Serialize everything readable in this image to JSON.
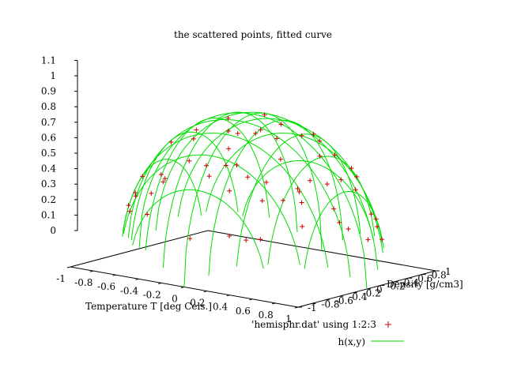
{
  "chart_data": {
    "type": "scatter",
    "title": "the scattered points, fitted curve",
    "xlabel": "Temperature T  [deg Cels.]",
    "ylabel": "Density [g/cm3]",
    "zlabel": "",
    "xlim": [
      -1,
      1
    ],
    "ylim": [
      -1,
      1
    ],
    "zlim": [
      0,
      1.1
    ],
    "x_ticks": [
      "-1",
      "-0.8",
      "-0.6",
      "-0.4",
      "-0.2",
      "0",
      "0.2",
      "0.4",
      "0.6",
      "0.8",
      "1"
    ],
    "y_ticks": [
      "-1",
      "-0.8",
      "-0.6",
      "-0.4",
      "-0.2",
      "0",
      "0.2",
      "0.4",
      "0.6",
      "0.8",
      "1"
    ],
    "z_ticks": [
      "0",
      "0.1",
      "0.2",
      "0.3",
      "0.4",
      "0.5",
      "0.6",
      "0.7",
      "0.8",
      "0.9",
      "1",
      "1.1"
    ],
    "legend_position": "bottom-right",
    "series": [
      {
        "name": "'hemisphr.dat' using 1:2:3",
        "kind": "points",
        "marker": "+",
        "color": "#cc0000",
        "x": [
          0.35,
          -0.52,
          0.12,
          0.78,
          -0.88,
          0.05,
          -0.31,
          0.64,
          -0.72,
          0.41,
          -0.15,
          0.22,
          -0.63,
          0.91,
          -0.44,
          0.58,
          -0.08,
          0.33,
          -0.82,
          0.7,
          -0.25,
          0.14,
          0.48,
          -0.57,
          0.02,
          -0.39,
          0.86,
          -0.11,
          0.27,
          -0.68,
          0.53,
          -0.93,
          0.18,
          -0.47,
          0.74,
          -0.19,
          0.61,
          -0.76,
          0.09,
          0.44,
          -0.35,
          0.83,
          -0.6,
          0.29,
          -0.05,
          0.67,
          -0.84,
          0.38,
          -0.28,
          0.95,
          -0.5,
          0.1,
          0.56,
          -0.7,
          0.2,
          -0.42,
          0.8,
          -0.14,
          0.46,
          -0.9
        ],
        "y": [
          0.61,
          -0.33,
          0.88,
          0.2,
          0.15,
          -0.72,
          0.55,
          -0.41,
          -0.52,
          0.03,
          0.92,
          -0.6,
          0.7,
          -0.12,
          -0.81,
          0.47,
          0.3,
          -0.89,
          -0.25,
          0.63,
          -0.45,
          0.74,
          -0.66,
          0.12,
          -0.95,
          0.84,
          0.38,
          -0.18,
          0.52,
          -0.58,
          -0.77,
          0.06,
          0.96,
          0.42,
          -0.51,
          0.66,
          0.71,
          0.33,
          -0.37,
          -0.83,
          -0.7,
          -0.2,
          0.6,
          0.8,
          0.49,
          -0.28,
          -0.42,
          0.25,
          0.9,
          0.1,
          0.75,
          -0.52,
          0.58,
          0.48,
          -0.22,
          -0.64,
          0.55,
          0.94,
          -0.36,
          -0.3
        ],
        "z": [
          0.71,
          0.79,
          0.46,
          0.59,
          0.43,
          0.69,
          0.77,
          0.65,
          0.46,
          0.91,
          0.37,
          0.77,
          0.34,
          0.39,
          0.39,
          0.67,
          0.95,
          0.36,
          0.52,
          0.34,
          0.86,
          0.66,
          0.58,
          0.81,
          0.31,
          0.41,
          0.34,
          0.98,
          0.8,
          0.45,
          0.35,
          0.36,
          0.21,
          0.78,
          0.43,
          0.74,
          0.35,
          0.56,
          0.93,
          0.34,
          0.62,
          0.52,
          0.52,
          0.52,
          0.87,
          0.69,
          0.35,
          0.89,
          0.3,
          0.3,
          0.44,
          0.85,
          0.6,
          0.52,
          0.95,
          0.63,
          0.23,
          0.3,
          0.81,
          0.29
        ]
      },
      {
        "name": "h(x,y)",
        "kind": "surface",
        "color": "#00dd00",
        "function": "sqrt(1 - x^2 - y^2)",
        "grid_lines": 10
      }
    ]
  }
}
